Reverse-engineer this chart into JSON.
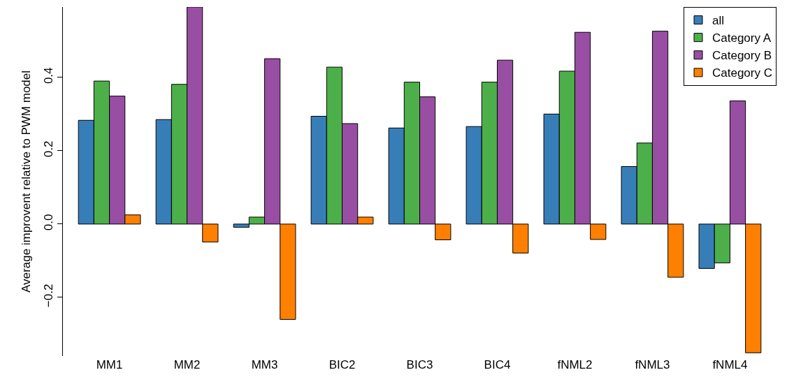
{
  "chart_data": {
    "type": "bar",
    "ylabel": "Average improvent relative to PWM model",
    "categories": [
      "MM1",
      "MM2",
      "MM3",
      "BIC2",
      "BIC3",
      "BIC4",
      "fNML2",
      "fNML3",
      "fNML4"
    ],
    "series": [
      {
        "name": "all",
        "color": "#377eb8",
        "values": [
          0.283,
          0.285,
          -0.009,
          0.294,
          0.262,
          0.266,
          0.3,
          0.157,
          -0.121
        ]
      },
      {
        "name": "Category A",
        "color": "#4daf4a",
        "values": [
          0.39,
          0.381,
          0.019,
          0.428,
          0.387,
          0.387,
          0.417,
          0.221,
          -0.106
        ]
      },
      {
        "name": "Category B",
        "color": "#984ea3",
        "values": [
          0.349,
          0.592,
          0.451,
          0.274,
          0.347,
          0.447,
          0.523,
          0.526,
          0.336
        ]
      },
      {
        "name": "Category C",
        "color": "#ff7f00",
        "values": [
          0.025,
          -0.049,
          -0.26,
          0.019,
          -0.043,
          -0.079,
          -0.042,
          -0.145,
          -0.351
        ]
      }
    ],
    "ylim": [
      -0.36,
      0.592
    ],
    "yticks": [
      {
        "value": -0.2,
        "label": "−0.2"
      },
      {
        "value": 0,
        "label": "0.0"
      },
      {
        "value": 0.2,
        "label": "0.2"
      },
      {
        "value": 0.4,
        "label": "0.4"
      }
    ],
    "grid": false,
    "legend": "top right"
  }
}
